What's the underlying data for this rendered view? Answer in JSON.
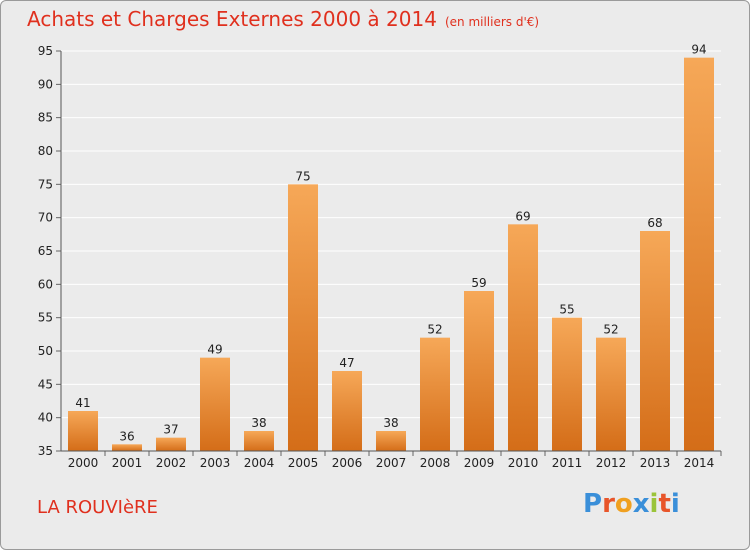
{
  "title": "Achats et Charges Externes 2000 à 2014",
  "subtitle": "(en milliers d'€)",
  "commune": "LA ROUVIèRE",
  "logo": {
    "letters": [
      "P",
      "r",
      "o",
      "x",
      "i",
      "t",
      "i"
    ],
    "colors": [
      "#3a8fd9",
      "#e8552a",
      "#f0a020",
      "#3a8fd9",
      "#9bc43a",
      "#e8552a",
      "#3a8fd9"
    ]
  },
  "colors": {
    "bar_top": "#f6a858",
    "bar_bottom": "#d46d18",
    "title": "#e0301e",
    "background": "#ebebeb",
    "grid": "#ffffff"
  },
  "chart_data": {
    "type": "bar",
    "categories": [
      "2000",
      "2001",
      "2002",
      "2003",
      "2004",
      "2005",
      "2006",
      "2007",
      "2008",
      "2009",
      "2010",
      "2011",
      "2012",
      "2013",
      "2014"
    ],
    "values": [
      41,
      36,
      37,
      49,
      38,
      75,
      47,
      38,
      52,
      59,
      69,
      55,
      52,
      68,
      94
    ],
    "ylim": [
      35,
      95
    ],
    "yticks": [
      35,
      40,
      45,
      50,
      55,
      60,
      65,
      70,
      75,
      80,
      85,
      90,
      95
    ],
    "grid": "horizontal",
    "title": "Achats et Charges Externes 2000 à 2014",
    "xlabel": "",
    "ylabel": ""
  }
}
